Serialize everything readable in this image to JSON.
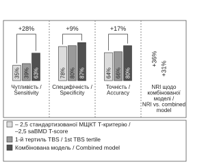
{
  "chart_data": {
    "type": "bar",
    "categories": [
      [
        "Чутливість /",
        "Sensitivity"
      ],
      [
        "Специфічність /",
        "Specificity"
      ],
      [
        "Точність /",
        "Accuracy"
      ],
      [
        "NRI щодо",
        "комбінованої",
        "моделі /",
        "NRI vs. combined",
        "model"
      ]
    ],
    "series": [
      {
        "name": [
          "– 2,5 стандартизованої МЩКТ Т-критерію /",
          "–2,5 saBMD T-score"
        ],
        "color": "#dcdcdc",
        "values": [
          35,
          78,
          64,
          null
        ],
        "value_labels": [
          "35%",
          "78%",
          "64%",
          null
        ]
      },
      {
        "name": [
          "1-й тертиль TBS / 1st TBS tertile"
        ],
        "color": "#9a9a9a",
        "values": [
          39,
          80,
          66,
          null
        ],
        "value_labels": [
          "39%",
          "80%",
          "66%",
          null
        ]
      },
      {
        "name": [
          "Комбінована модель / Combined model"
        ],
        "color": "#505050",
        "values": [
          63,
          87,
          80,
          null
        ],
        "value_labels": [
          "63%",
          "87%",
          "80%",
          null
        ]
      }
    ],
    "group_annotations": [
      "+28%",
      "+9%",
      "+17%",
      null
    ],
    "nri_labels": [
      "+36%",
      "+31%"
    ],
    "ylim": [
      0,
      100
    ]
  }
}
